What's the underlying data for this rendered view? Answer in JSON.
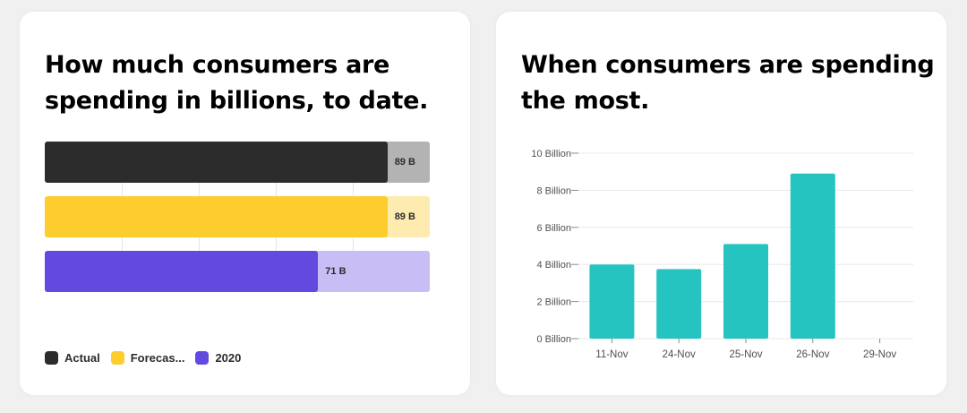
{
  "left_card": {
    "title": "How much consumers are spending in billions, to date."
  },
  "right_card": {
    "title": "When consumers are spending the most."
  },
  "legend": [
    {
      "label": "Actual",
      "color": "#2c2c2c"
    },
    {
      "label": "Forecas...",
      "color": "#fdcd2e"
    },
    {
      "label": "2020",
      "color": "#6349e0"
    }
  ],
  "chart_data": [
    {
      "type": "bar",
      "orientation": "horizontal",
      "title": "How much consumers are spending in billions, to date.",
      "series": [
        {
          "name": "Actual",
          "value": 89,
          "value_label": "89 B",
          "color": "#2c2c2c",
          "track_color": "#b3b3b3"
        },
        {
          "name": "Forecas...",
          "value": 89,
          "value_label": "89 B",
          "color": "#fdcd2e",
          "track_color": "#fdebb0"
        },
        {
          "name": "2020",
          "value": 71,
          "value_label": "71 B",
          "color": "#6349e0",
          "track_color": "#c8bdf4"
        }
      ],
      "xlim": [
        0,
        100
      ],
      "grid": true
    },
    {
      "type": "bar",
      "title": "When consumers are spending the most.",
      "categories": [
        "11-Nov",
        "24-Nov",
        "25-Nov",
        "26-Nov",
        "29-Nov"
      ],
      "values": [
        4.0,
        3.75,
        5.1,
        8.9,
        0
      ],
      "value_unit": "Billion",
      "ylim": [
        0,
        10
      ],
      "yticks": [
        0,
        2,
        4,
        6,
        8,
        10
      ],
      "ytick_labels": [
        "0 Billion",
        "2 Billion",
        "4 Billion",
        "6 Billion",
        "8 Billion",
        "10 Billion"
      ],
      "color": "#26c4c0",
      "grid": true
    }
  ]
}
